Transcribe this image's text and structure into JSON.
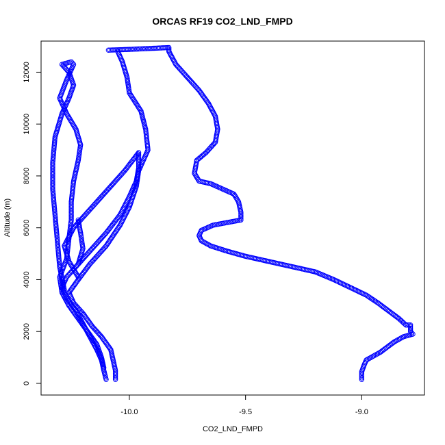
{
  "chart_data": {
    "type": "scatter",
    "title": "ORCAS RF19 CO2_LND_FMPD",
    "xlabel": "CO2_LND_FMPD",
    "ylabel": "Altitude (m)",
    "xlim": [
      -10.38,
      -8.73
    ],
    "ylim": [
      -450,
      13200
    ],
    "x_ticks": [
      -10.0,
      -9.5,
      -9.0
    ],
    "x_tick_labels": [
      "-10.0",
      "-9.5",
      "-9.0"
    ],
    "y_ticks": [
      0,
      2000,
      4000,
      6000,
      8000,
      10000,
      12000
    ],
    "y_tick_labels": [
      "0",
      "2000",
      "4000",
      "6000",
      "8000",
      "10000",
      "12000"
    ],
    "grid": false,
    "marker": "open-circle",
    "point_color": "#0000ff",
    "series": [
      {
        "points": [
          [
            -10.1,
            150
          ],
          [
            -10.11,
            500
          ],
          [
            -10.12,
            900
          ],
          [
            -10.14,
            1300
          ],
          [
            -10.17,
            1800
          ],
          [
            -10.2,
            2300
          ],
          [
            -10.23,
            2800
          ],
          [
            -10.27,
            3300
          ],
          [
            -10.29,
            3700
          ],
          [
            -10.27,
            4100
          ],
          [
            -10.22,
            4600
          ],
          [
            -10.2,
            5200
          ],
          [
            -10.21,
            5800
          ],
          [
            -10.22,
            6300
          ]
        ]
      },
      {
        "points": [
          [
            -10.06,
            150
          ],
          [
            -10.06,
            500
          ],
          [
            -10.07,
            900
          ],
          [
            -10.08,
            1300
          ],
          [
            -10.12,
            1800
          ],
          [
            -10.16,
            2200
          ],
          [
            -10.2,
            2700
          ],
          [
            -10.24,
            3100
          ],
          [
            -10.26,
            3500
          ],
          [
            -10.22,
            4000
          ],
          [
            -10.17,
            4600
          ],
          [
            -10.1,
            5300
          ],
          [
            -10.04,
            6100
          ],
          [
            -10.0,
            6800
          ],
          [
            -9.97,
            7600
          ],
          [
            -9.96,
            8200
          ],
          [
            -9.92,
            9000
          ],
          [
            -9.93,
            9800
          ],
          [
            -9.95,
            10500
          ],
          [
            -10.0,
            11200
          ],
          [
            -10.01,
            11800
          ],
          [
            -10.03,
            12400
          ],
          [
            -10.05,
            12800
          ]
        ]
      },
      {
        "points": [
          [
            -10.22,
            4600
          ],
          [
            -10.16,
            5200
          ],
          [
            -10.1,
            5800
          ],
          [
            -10.04,
            6500
          ],
          [
            -10.0,
            7200
          ],
          [
            -9.97,
            7800
          ],
          [
            -9.96,
            8300
          ],
          [
            -9.96,
            8900
          ],
          [
            -10.02,
            8200
          ],
          [
            -10.09,
            7500
          ],
          [
            -10.17,
            6700
          ],
          [
            -10.24,
            6000
          ],
          [
            -10.28,
            5300
          ],
          [
            -10.26,
            4700
          ],
          [
            -10.22,
            4100
          ]
        ]
      },
      {
        "points": [
          [
            -10.28,
            3600
          ],
          [
            -10.3,
            4500
          ],
          [
            -10.31,
            5500
          ],
          [
            -10.32,
            6500
          ],
          [
            -10.33,
            7500
          ],
          [
            -10.33,
            8500
          ],
          [
            -10.32,
            9500
          ],
          [
            -10.29,
            10400
          ],
          [
            -10.26,
            11000
          ],
          [
            -10.24,
            11500
          ],
          [
            -10.26,
            12000
          ],
          [
            -10.29,
            12300
          ],
          [
            -10.25,
            12400
          ],
          [
            -10.24,
            12300
          ],
          [
            -10.27,
            11700
          ],
          [
            -10.3,
            11000
          ],
          [
            -10.27,
            10400
          ],
          [
            -10.23,
            9800
          ],
          [
            -10.21,
            9200
          ],
          [
            -10.22,
            8600
          ],
          [
            -10.24,
            7800
          ],
          [
            -10.25,
            7000
          ],
          [
            -10.25,
            6300
          ],
          [
            -10.26,
            5600
          ],
          [
            -10.27,
            4800
          ],
          [
            -10.3,
            4100
          ],
          [
            -10.29,
            3500
          ],
          [
            -10.26,
            3000
          ],
          [
            -10.22,
            2500
          ],
          [
            -10.18,
            2000
          ],
          [
            -10.14,
            1500
          ],
          [
            -10.12,
            1000
          ],
          [
            -10.11,
            600
          ]
        ]
      },
      {
        "points": [
          [
            -10.09,
            12850
          ],
          [
            -10.0,
            12880
          ],
          [
            -9.9,
            12920
          ],
          [
            -9.83,
            12950
          ],
          [
            -9.83,
            12800
          ],
          [
            -9.8,
            12300
          ],
          [
            -9.75,
            11800
          ],
          [
            -9.7,
            11300
          ],
          [
            -9.66,
            10800
          ],
          [
            -9.63,
            10300
          ],
          [
            -9.62,
            9800
          ],
          [
            -9.63,
            9300
          ],
          [
            -9.67,
            8900
          ],
          [
            -9.71,
            8600
          ],
          [
            -9.72,
            8100
          ],
          [
            -9.7,
            7800
          ],
          [
            -9.65,
            7700
          ],
          [
            -9.6,
            7500
          ],
          [
            -9.55,
            7300
          ],
          [
            -9.53,
            7000
          ],
          [
            -9.52,
            6600
          ],
          [
            -9.52,
            6300
          ],
          [
            -9.58,
            6200
          ],
          [
            -9.64,
            6100
          ],
          [
            -9.69,
            5900
          ],
          [
            -9.7,
            5700
          ],
          [
            -9.69,
            5500
          ],
          [
            -9.65,
            5300
          ],
          [
            -9.58,
            5100
          ],
          [
            -9.5,
            4900
          ],
          [
            -9.4,
            4700
          ],
          [
            -9.3,
            4500
          ],
          [
            -9.2,
            4300
          ],
          [
            -9.12,
            4000
          ],
          [
            -9.05,
            3700
          ],
          [
            -8.98,
            3400
          ],
          [
            -8.93,
            3100
          ],
          [
            -8.9,
            2900
          ],
          [
            -8.87,
            2700
          ],
          [
            -8.84,
            2500
          ],
          [
            -8.81,
            2250
          ],
          [
            -8.79,
            2250
          ],
          [
            -8.79,
            2000
          ],
          [
            -8.78,
            1900
          ],
          [
            -8.82,
            1800
          ],
          [
            -8.86,
            1600
          ],
          [
            -8.89,
            1400
          ],
          [
            -8.92,
            1200
          ],
          [
            -8.95,
            1050
          ],
          [
            -8.98,
            900
          ],
          [
            -8.99,
            700
          ],
          [
            -9.0,
            450
          ],
          [
            -9.0,
            150
          ]
        ]
      }
    ]
  }
}
